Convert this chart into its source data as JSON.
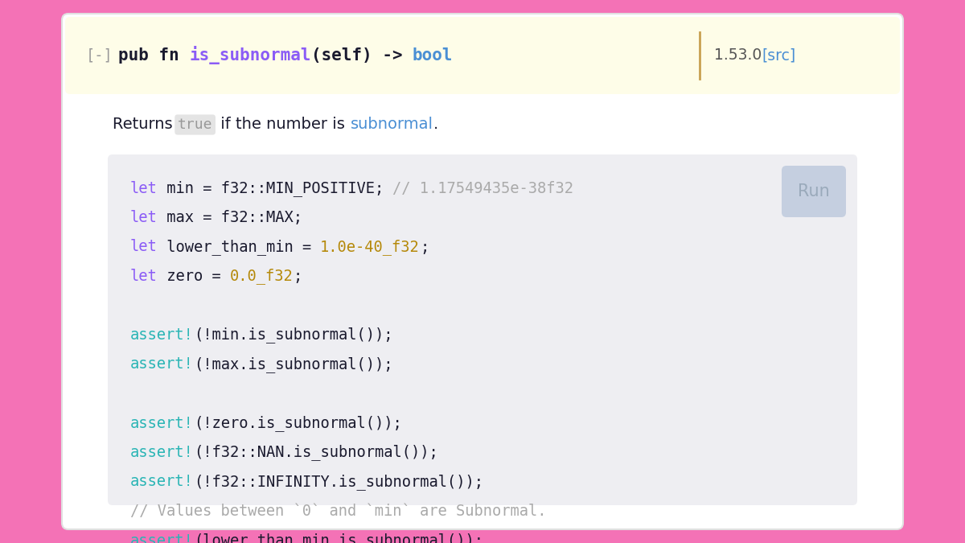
{
  "bg_color": "#f472b6",
  "card_bg": "#ffffff",
  "code_bg": "#eeeef2",
  "header_bg": "#fefde8",
  "run_btn_bg": "#c5cfe0",
  "divider_color": "#c8a050",
  "color_keyword": "#8b5cf6",
  "color_ident": "#1a1a2e",
  "color_value": "#b5890a",
  "color_comment": "#aaaaaa",
  "color_assert": "#2ab5b5",
  "color_link": "#4a8fd4",
  "color_fn_name": "#8b5cf6",
  "color_bool_type": "#4a8fd4",
  "color_pub_fn": "#1a1a2e",
  "color_minus": "#999999",
  "color_version": "#555555",
  "color_returns_text": "#1a1a2e",
  "color_true_text": "#999999",
  "color_true_bg": "#e4e4e4",
  "color_run_text": "#9aaabb",
  "font_mono": "DejaVu Sans Mono",
  "font_sans": "DejaVu Sans",
  "lines": [
    [
      {
        "text": "let",
        "color": "#8b5cf6"
      },
      {
        "text": " min = f32::MIN_POSITIVE; ",
        "color": "#1a1a2e"
      },
      {
        "text": "// 1.17549435e-38f32",
        "color": "#aaaaaa"
      }
    ],
    [
      {
        "text": "let",
        "color": "#8b5cf6"
      },
      {
        "text": " max = f32::MAX;",
        "color": "#1a1a2e"
      }
    ],
    [
      {
        "text": "let",
        "color": "#8b5cf6"
      },
      {
        "text": " lower_than_min = ",
        "color": "#1a1a2e"
      },
      {
        "text": "1.0e-40_f32",
        "color": "#b5890a"
      },
      {
        "text": ";",
        "color": "#1a1a2e"
      }
    ],
    [
      {
        "text": "let",
        "color": "#8b5cf6"
      },
      {
        "text": " zero = ",
        "color": "#1a1a2e"
      },
      {
        "text": "0.0_f32",
        "color": "#b5890a"
      },
      {
        "text": ";",
        "color": "#1a1a2e"
      }
    ],
    [],
    [
      {
        "text": "assert!",
        "color": "#2ab5b5"
      },
      {
        "text": "(!min.is_subnormal());",
        "color": "#1a1a2e"
      }
    ],
    [
      {
        "text": "assert!",
        "color": "#2ab5b5"
      },
      {
        "text": "(!max.is_subnormal());",
        "color": "#1a1a2e"
      }
    ],
    [],
    [
      {
        "text": "assert!",
        "color": "#2ab5b5"
      },
      {
        "text": "(!zero.is_subnormal());",
        "color": "#1a1a2e"
      }
    ],
    [
      {
        "text": "assert!",
        "color": "#2ab5b5"
      },
      {
        "text": "(!f32::NAN.is_subnormal());",
        "color": "#1a1a2e"
      }
    ],
    [
      {
        "text": "assert!",
        "color": "#2ab5b5"
      },
      {
        "text": "(!f32::INFINITY.is_subnormal());",
        "color": "#1a1a2e"
      }
    ],
    [
      {
        "text": "// Values between `0` and `min` are Subnormal.",
        "color": "#aaaaaa"
      }
    ],
    [
      {
        "text": "assert!",
        "color": "#2ab5b5"
      },
      {
        "text": "(lower_than_min.is_subnormal());",
        "color": "#1a1a2e"
      }
    ]
  ]
}
